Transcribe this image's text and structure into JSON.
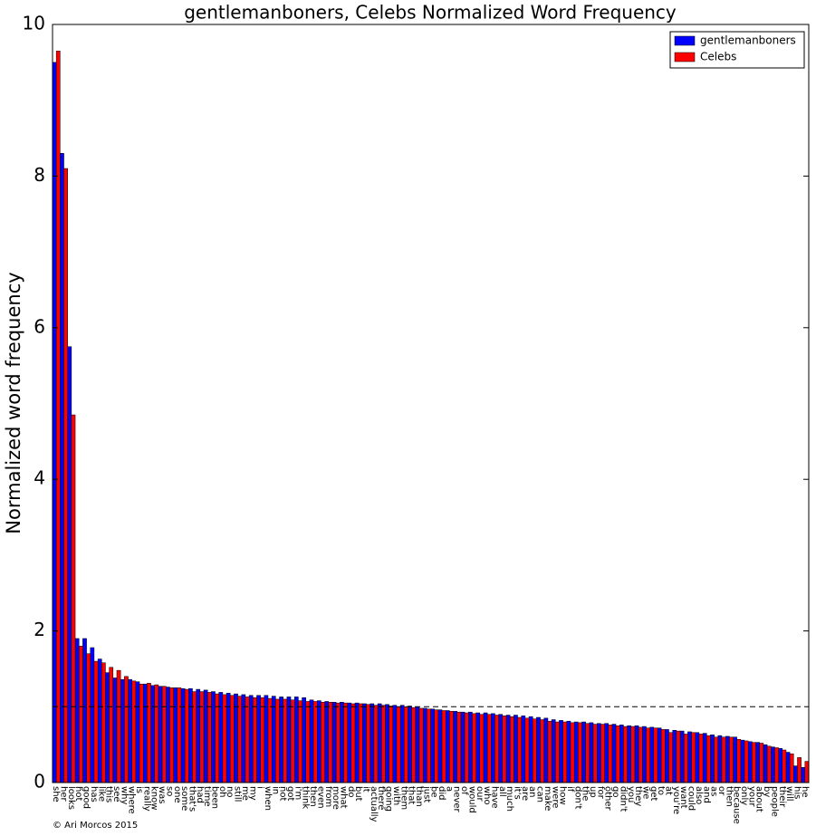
{
  "chart_data": {
    "type": "bar",
    "title": "gentlemanboners, Celebs Normalized Word Frequency",
    "ylabel": "Normalized word frequency",
    "footer": "© Ari Morcos  2015",
    "categories": [
      "she",
      "her",
      "looks",
      "hot",
      "good",
      "has",
      "like",
      "this",
      "see",
      "why",
      "where",
      "is",
      "really",
      "know",
      "was",
      "so",
      "one",
      "some",
      "that's",
      "had",
      "time",
      "been",
      "oh",
      "no",
      "still",
      "me",
      "my",
      "i",
      "when",
      "in",
      "not",
      "got",
      "i'm",
      "think",
      "then",
      "even",
      "from",
      "more",
      "what",
      "do",
      "but",
      "it",
      "actually",
      "there",
      "going",
      "with",
      "them",
      "that",
      "than",
      "just",
      "be",
      "did",
      "a",
      "never",
      "of",
      "would",
      "our",
      "who",
      "have",
      "all",
      "much",
      "it's",
      "are",
      "an",
      "can",
      "make",
      "were",
      "how",
      "if",
      "don't",
      "the",
      "up",
      "for",
      "other",
      "go",
      "didn't",
      "you",
      "they",
      "we",
      "get",
      "to",
      "at",
      "you're",
      "want",
      "could",
      "also",
      "and",
      "as",
      "or",
      "then",
      "because",
      "only",
      "your",
      "about",
      "by",
      "people",
      "their",
      "will",
      "his",
      "he"
    ],
    "series": [
      {
        "name": "gentlemanboners",
        "color": "#0000ff",
        "values": [
          9.5,
          8.3,
          5.75,
          1.9,
          1.9,
          1.78,
          1.63,
          1.45,
          1.38,
          1.36,
          1.36,
          1.33,
          1.3,
          1.28,
          1.27,
          1.26,
          1.25,
          1.24,
          1.24,
          1.23,
          1.22,
          1.2,
          1.19,
          1.18,
          1.17,
          1.16,
          1.15,
          1.15,
          1.15,
          1.14,
          1.13,
          1.13,
          1.13,
          1.12,
          1.09,
          1.08,
          1.07,
          1.06,
          1.06,
          1.05,
          1.05,
          1.04,
          1.04,
          1.04,
          1.03,
          1.02,
          1.02,
          1.01,
          1.0,
          0.98,
          0.97,
          0.96,
          0.95,
          0.94,
          0.93,
          0.93,
          0.92,
          0.92,
          0.91,
          0.9,
          0.89,
          0.89,
          0.88,
          0.87,
          0.86,
          0.85,
          0.83,
          0.82,
          0.81,
          0.8,
          0.8,
          0.79,
          0.78,
          0.78,
          0.77,
          0.76,
          0.75,
          0.75,
          0.74,
          0.73,
          0.72,
          0.7,
          0.69,
          0.68,
          0.67,
          0.66,
          0.65,
          0.63,
          0.62,
          0.61,
          0.6,
          0.56,
          0.54,
          0.53,
          0.5,
          0.47,
          0.45,
          0.4,
          0.22,
          0.2
        ]
      },
      {
        "name": "Celebs",
        "color": "#ff0000",
        "values": [
          9.65,
          8.1,
          4.85,
          1.8,
          1.7,
          1.6,
          1.58,
          1.52,
          1.48,
          1.4,
          1.34,
          1.3,
          1.31,
          1.29,
          1.27,
          1.25,
          1.25,
          1.23,
          1.2,
          1.2,
          1.19,
          1.17,
          1.16,
          1.15,
          1.14,
          1.13,
          1.12,
          1.12,
          1.11,
          1.1,
          1.1,
          1.09,
          1.08,
          1.07,
          1.07,
          1.06,
          1.06,
          1.05,
          1.05,
          1.04,
          1.04,
          1.03,
          1.02,
          1.02,
          1.01,
          1.0,
          1.0,
          0.99,
          0.98,
          0.97,
          0.96,
          0.95,
          0.94,
          0.93,
          0.92,
          0.91,
          0.9,
          0.9,
          0.89,
          0.88,
          0.87,
          0.86,
          0.85,
          0.84,
          0.83,
          0.81,
          0.8,
          0.8,
          0.79,
          0.79,
          0.78,
          0.77,
          0.77,
          0.76,
          0.75,
          0.74,
          0.74,
          0.73,
          0.72,
          0.72,
          0.7,
          0.66,
          0.68,
          0.64,
          0.66,
          0.64,
          0.62,
          0.6,
          0.6,
          0.6,
          0.57,
          0.55,
          0.53,
          0.52,
          0.48,
          0.46,
          0.43,
          0.38,
          0.33,
          0.28
        ]
      }
    ],
    "ylim": [
      0,
      10
    ],
    "yticks": [
      0,
      2,
      4,
      6,
      8,
      10
    ],
    "hline": 1,
    "legend": "upper right"
  }
}
